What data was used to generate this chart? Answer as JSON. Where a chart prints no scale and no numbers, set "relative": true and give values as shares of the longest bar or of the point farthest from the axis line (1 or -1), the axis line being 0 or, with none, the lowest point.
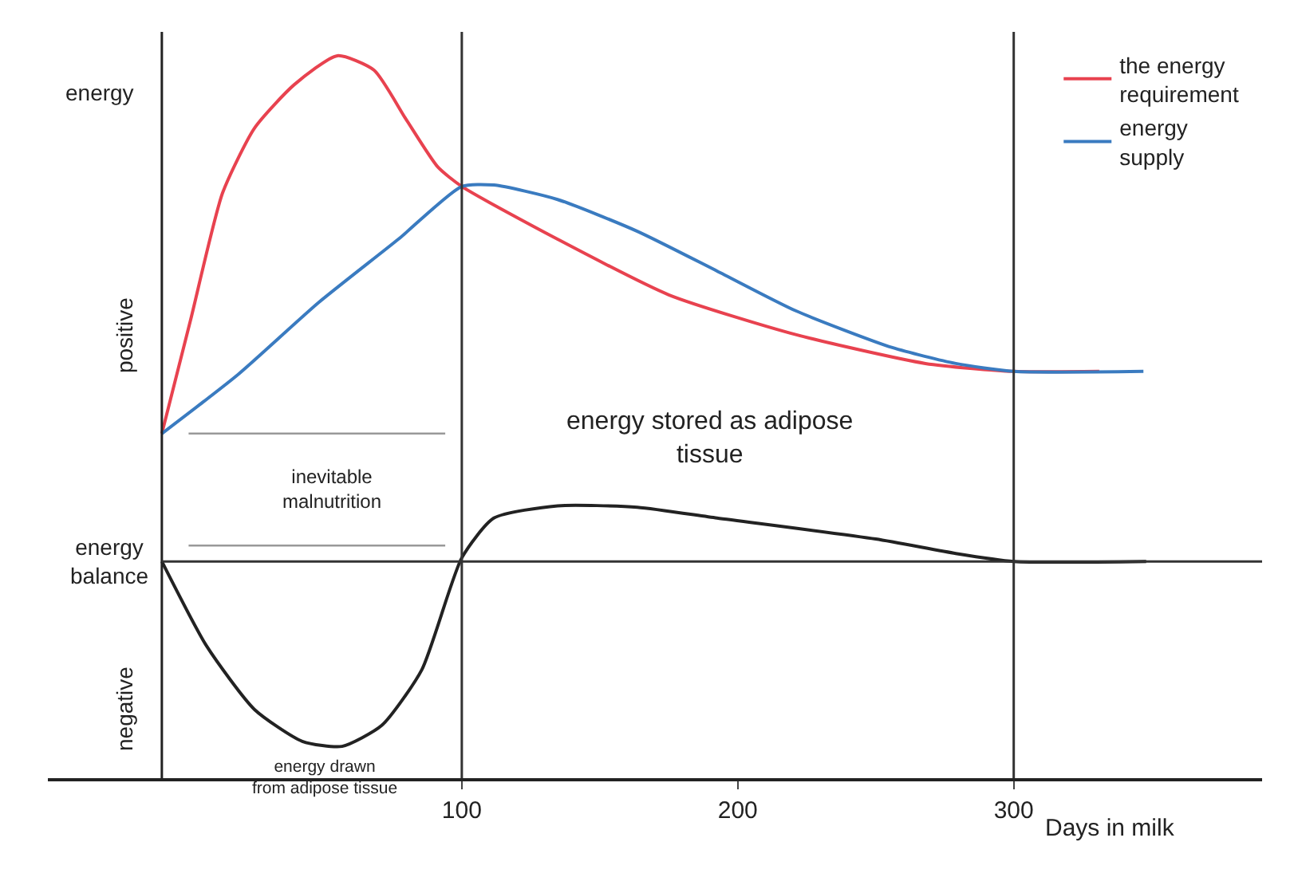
{
  "chart_data": {
    "type": "line",
    "relative": true,
    "ylabel": "energy",
    "xlabel": "Days in milk",
    "xlim": [
      -50,
      390
    ],
    "xticks": [
      100,
      200,
      300
    ],
    "grid": false,
    "legend": "top right",
    "marker": "none",
    "line_style": "solid",
    "series": [
      {
        "name": "the energy\nrequirement",
        "color": "#e8424f",
        "x": [
          -8.7,
          1.7,
          13.3,
          24.9,
          39.3,
          54.9,
          68.2,
          79.8,
          91.3,
          100,
          134.7,
          175,
          221,
          268,
          300,
          331
        ],
        "values": [
          0.477,
          0.634,
          0.81,
          0.9,
          0.96,
          1.0,
          0.98,
          0.912,
          0.846,
          0.819,
          0.746,
          0.669,
          0.614,
          0.574,
          0.563,
          0.563
        ]
      },
      {
        "name": "energy\nsupply",
        "color": "#3a7bc0",
        "x": [
          -8.7,
          19,
          48,
          77,
          100,
          111.6,
          134.7,
          163.6,
          192.5,
          221,
          256,
          279,
          300,
          347
        ],
        "values": [
          0.477,
          0.559,
          0.658,
          0.746,
          0.819,
          0.821,
          0.801,
          0.757,
          0.702,
          0.647,
          0.596,
          0.574,
          0.563,
          0.563
        ]
      },
      {
        "color": "#222222",
        "x": [
          -8.7,
          7.5,
          24.9,
          42.2,
          56.6,
          71,
          85.5,
          100,
          111.6,
          134.7,
          163.6,
          192.5,
          250,
          279,
          300,
          348
        ],
        "values": [
          0.3,
          0.183,
          0.095,
          0.051,
          0.044,
          0.073,
          0.15,
          0.305,
          0.36,
          0.377,
          0.375,
          0.36,
          0.331,
          0.311,
          0.3,
          0.3
        ]
      },
      {
        "color": "#999999",
        "x": [
          1,
          94
        ],
        "values": [
          0.477,
          0.477
        ]
      },
      {
        "color": "#999999",
        "x": [
          1,
          94
        ],
        "values": [
          0.322,
          0.322
        ]
      }
    ],
    "ref_lines": [
      {
        "axis": "x",
        "value": -8.7,
        "color": "#222222"
      },
      {
        "axis": "x",
        "value": 100,
        "color": "#333333"
      },
      {
        "axis": "x",
        "value": 300,
        "color": "#333333"
      },
      {
        "axis": "y",
        "value": 0.3,
        "label": "energy\nbalance",
        "color": "#333333"
      }
    ],
    "annotations": [
      "positive",
      "negative",
      "energy stored as adipose\ntissue",
      "energy drawn\nfrom adipose tissue",
      "inevitable\nmalnutrition"
    ]
  }
}
